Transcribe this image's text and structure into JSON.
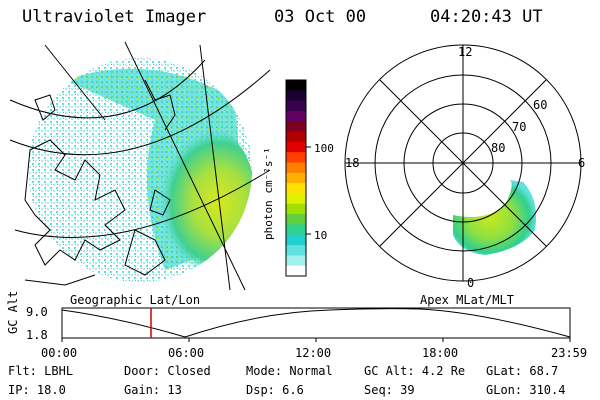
{
  "header": {
    "instrument": "Ultraviolet Imager",
    "date": "03 Oct 00",
    "time": "04:20:43 UT"
  },
  "left_panel": {
    "caption": "Geographic Lat/Lon"
  },
  "right_panel": {
    "caption": "Apex MLat/MLT",
    "mlt_labels": {
      "top": "12",
      "left": "18",
      "right": "6",
      "bottom": "0"
    },
    "lat_labels": [
      "60",
      "70",
      "80"
    ]
  },
  "colorbar": {
    "unit_label": "photon cm⁻²s⁻¹",
    "tick_labels": [
      "100",
      "10"
    ],
    "colors": [
      "#000000",
      "#1a0030",
      "#3a0050",
      "#600060",
      "#800020",
      "#b00000",
      "#e00000",
      "#ff4000",
      "#ff8000",
      "#ffb000",
      "#ffe000",
      "#e0f000",
      "#a0e000",
      "#60d040",
      "#30d090",
      "#20d0d0",
      "#60e0e0",
      "#a0f0f0",
      "#ffffff"
    ]
  },
  "altitude_plot": {
    "ylabel": "GC Alt",
    "y_ticks": [
      "9.0",
      "1.8"
    ],
    "x_ticks": [
      "00:00",
      "06:00",
      "12:00",
      "18:00",
      "23:59"
    ],
    "marker_color": "#cc0000"
  },
  "info": {
    "row1": [
      {
        "label": "Flt:",
        "value": "LBHL"
      },
      {
        "label": "Door:",
        "value": "Closed"
      },
      {
        "label": "Mode:",
        "value": "Normal"
      },
      {
        "label": "GC Alt:",
        "value": "4.2 Re"
      },
      {
        "label": "GLat:",
        "value": "68.7"
      }
    ],
    "row2": [
      {
        "label": "IP:",
        "value": "18.0"
      },
      {
        "label": "Gain:",
        "value": "13"
      },
      {
        "label": "Dsp:",
        "value": "6.6"
      },
      {
        "label": "Seq:",
        "value": "39"
      },
      {
        "label": "GLon:",
        "value": "310.4"
      }
    ]
  }
}
